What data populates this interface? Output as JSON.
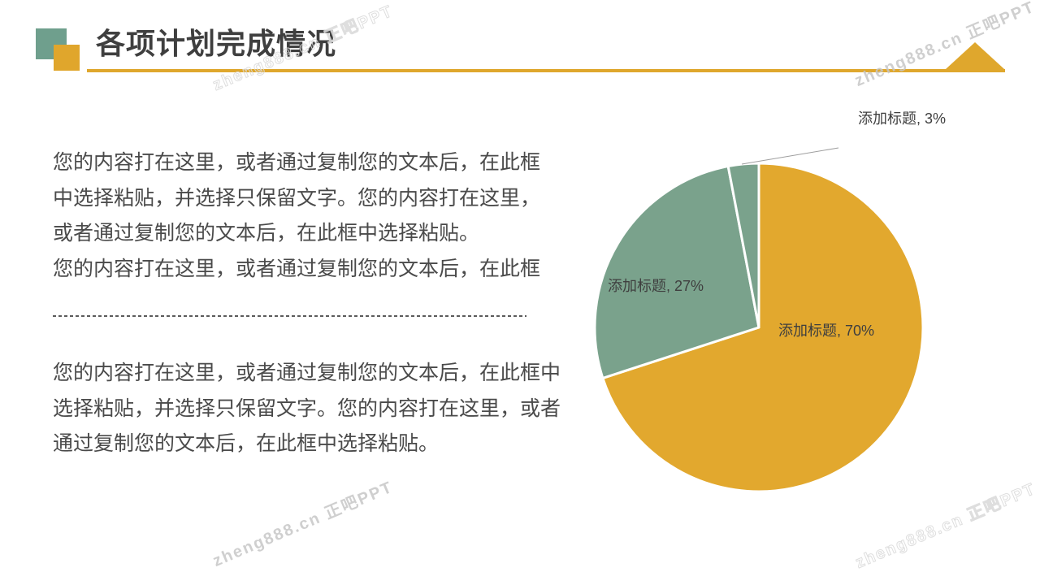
{
  "header": {
    "title": "各项计划完成情况"
  },
  "watermark": {
    "text": "zheng888.cn 正吧PPT"
  },
  "body_text": {
    "paragraph1_lines": [
      "您的内容打在这里，或者通过复制您的文本后，在此框",
      "中选择粘贴，并选择只保留文字。您的内容打在这里，",
      "或者通过复制您的文本后，在此框中选择粘贴。",
      "您的内容打在这里，或者通过复制您的文本后，在此框"
    ],
    "paragraph2_lines": [
      "您的内容打在这里，或者通过复制您的文本后，在此框中",
      "选择粘贴，并选择只保留文字。您的内容打在这里，或者",
      "通过复制您的文本后，在此框中选择粘贴。"
    ]
  },
  "chart_data": {
    "type": "pie",
    "title": "",
    "unit": "%",
    "categories": [
      "添加标题",
      "添加标题",
      "添加标题"
    ],
    "values": [
      70,
      27,
      3
    ],
    "slices": [
      {
        "name": "添加标题",
        "value": 70,
        "display": "添加标题, 70%",
        "color": "#E2A82E",
        "label_position": "inside"
      },
      {
        "name": "添加标题",
        "value": 27,
        "display": "添加标题, 27%",
        "color": "#7AA28C",
        "label_position": "inside"
      },
      {
        "name": "添加标题",
        "value": 3,
        "display": "添加标题, 3%",
        "color": "#7AA28C",
        "label_position": "outside-with-leader"
      }
    ],
    "start_angle_deg": -90,
    "direction": "clockwise",
    "legend": "none",
    "grid": false,
    "slice_border_color": "#FFFFFF"
  },
  "theme": {
    "accent_yellow": "#DFA72D",
    "accent_green": "#6F9F8D",
    "title_color": "#3F3F3F",
    "body_text_color": "#4A4A4A",
    "leader_line_color": "#9E9E9E"
  }
}
